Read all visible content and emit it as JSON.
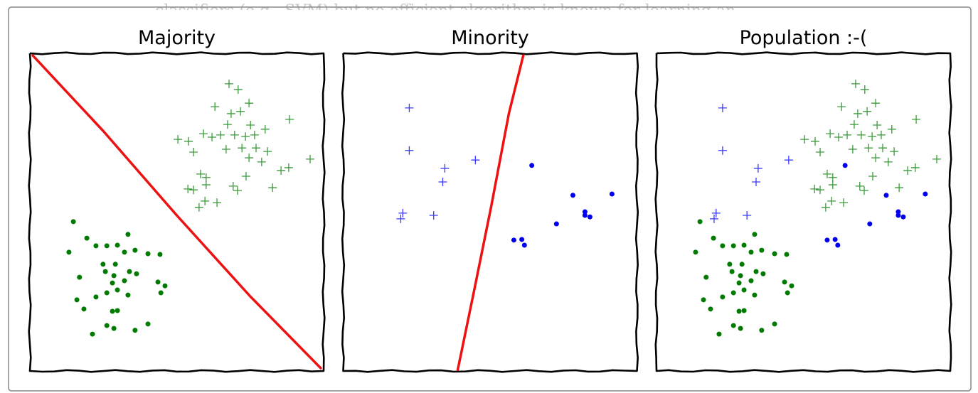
{
  "background_text": "classifiers (e.g., SVM) but no efficient algorithm is known for learning an",
  "chart_data": [
    {
      "type": "scatter",
      "title": "Majority",
      "xlim": [
        0,
        100
      ],
      "ylim": [
        0,
        100
      ],
      "series": [
        {
          "marker": "plus",
          "color": "#3c9a3c",
          "x": [
            67.8,
            70.9,
            63.0,
            74.6,
            68.5,
            71.7,
            88.4,
            67.3,
            75.1,
            80.1,
            59.1,
            62.0,
            64.9,
            69.7,
            73.4,
            76.5,
            50.4,
            54.0,
            66.8,
            72.2,
            77.0,
            80.9,
            55.7,
            74.6,
            78.9,
            95.4,
            85.5,
            88.1,
            58.1,
            60.0,
            73.6,
            53.8,
            55.7,
            60.0,
            69.2,
            70.7,
            82.6,
            59.6,
            63.7,
            57.6
          ],
          "values": [
            90.4,
            88.6,
            83.2,
            84.3,
            81.0,
            81.7,
            79.2,
            77.6,
            77.4,
            76.1,
            74.7,
            73.6,
            74.3,
            74.3,
            73.8,
            74.3,
            72.9,
            72.3,
            69.8,
            70.2,
            70.2,
            69.1,
            68.9,
            67.1,
            65.8,
            66.7,
            63.1,
            64.0,
            62.0,
            60.9,
            61.3,
            57.3,
            57.0,
            58.6,
            58.2,
            56.8,
            57.7,
            53.5,
            53.0,
            51.5
          ]
        },
        {
          "marker": "dot",
          "color": "#007a00",
          "x": [
            14.8,
            19.4,
            33.4,
            22.5,
            26.2,
            29.8,
            13.3,
            32.2,
            35.8,
            40.2,
            44.3,
            24.9,
            29.1,
            16.9,
            25.7,
            28.6,
            33.9,
            36.3,
            28.1,
            32.2,
            43.6,
            46.0,
            22.5,
            26.2,
            29.8,
            33.4,
            16.0,
            44.6,
            18.4,
            28.1,
            29.8,
            26.2,
            28.6,
            21.3,
            35.8,
            40.2
          ],
          "values": [
            47.0,
            41.8,
            43.0,
            39.4,
            39.4,
            39.6,
            37.4,
            37.4,
            38.0,
            36.9,
            36.7,
            33.6,
            33.6,
            29.5,
            31.3,
            30.0,
            31.3,
            30.6,
            27.7,
            28.4,
            28.0,
            26.8,
            23.3,
            24.6,
            25.5,
            23.9,
            22.4,
            24.6,
            19.5,
            18.8,
            19.0,
            14.3,
            13.4,
            11.6,
            12.8,
            14.8
          ]
        },
        {
          "marker": "line",
          "color": "#ee1111",
          "x": [
            1,
            25,
            50,
            75,
            99
          ],
          "values": [
            99.3,
            75.5,
            49.0,
            23.5,
            0.9
          ]
        }
      ]
    },
    {
      "type": "scatter",
      "title": "Minority",
      "xlim": [
        0,
        100
      ],
      "ylim": [
        0,
        100
      ],
      "series": [
        {
          "marker": "plus",
          "color": "#3a3aff",
          "x": [
            22.5,
            22.5,
            34.6,
            33.9,
            45.0,
            20.3,
            19.6,
            30.8
          ],
          "values": [
            82.8,
            69.4,
            63.8,
            59.5,
            66.4,
            49.7,
            47.9,
            49.0
          ]
        },
        {
          "marker": "dot",
          "color": "#0000ee",
          "x": [
            64.2,
            78.2,
            91.5,
            82.3,
            84.0,
            82.3,
            72.6,
            58.1,
            60.8,
            61.7
          ],
          "values": [
            64.7,
            55.3,
            55.7,
            50.1,
            48.5,
            49.0,
            46.3,
            41.2,
            41.4,
            39.6
          ]
        },
        {
          "marker": "line",
          "color": "#ee1111",
          "x": [
            61.3,
            56.4,
            50.4,
            44.5,
            39.0
          ],
          "values": [
            99.3,
            81.0,
            51.9,
            25.0,
            0.4
          ]
        }
      ]
    },
    {
      "type": "scatter",
      "title": "Population :-(",
      "xlim": [
        0,
        100
      ],
      "ylim": [
        0,
        100
      ],
      "series": [
        {
          "marker": "plus",
          "color": "#3c9a3c",
          "x": [
            67.8,
            70.9,
            63.0,
            74.6,
            68.5,
            71.7,
            88.4,
            67.3,
            75.1,
            80.1,
            59.1,
            62.0,
            64.9,
            69.7,
            73.4,
            76.5,
            50.4,
            54.0,
            66.8,
            72.2,
            77.0,
            80.9,
            55.7,
            74.6,
            78.9,
            95.4,
            85.5,
            88.1,
            58.1,
            60.0,
            73.6,
            53.8,
            55.7,
            60.0,
            69.2,
            70.7,
            82.6,
            59.6,
            63.7,
            57.6
          ],
          "values": [
            90.4,
            88.6,
            83.2,
            84.3,
            81.0,
            81.7,
            79.2,
            77.6,
            77.4,
            76.1,
            74.7,
            73.6,
            74.3,
            74.3,
            73.8,
            74.3,
            72.9,
            72.3,
            69.8,
            70.2,
            70.2,
            69.1,
            68.9,
            67.1,
            65.8,
            66.7,
            63.1,
            64.0,
            62.0,
            60.9,
            61.3,
            57.3,
            57.0,
            58.6,
            58.2,
            56.8,
            57.7,
            53.5,
            53.0,
            51.5
          ]
        },
        {
          "marker": "dot",
          "color": "#007a00",
          "x": [
            14.8,
            19.4,
            33.4,
            22.5,
            26.2,
            29.8,
            13.3,
            32.2,
            35.8,
            40.2,
            44.3,
            24.9,
            29.1,
            16.9,
            25.7,
            28.6,
            33.9,
            36.3,
            28.1,
            32.2,
            43.6,
            46.0,
            22.5,
            26.2,
            29.8,
            33.4,
            16.0,
            44.6,
            18.4,
            28.1,
            29.8,
            26.2,
            28.6,
            21.3,
            35.8,
            40.2
          ],
          "values": [
            47.0,
            41.8,
            43.0,
            39.4,
            39.4,
            39.6,
            37.4,
            37.4,
            38.0,
            36.9,
            36.7,
            33.6,
            33.6,
            29.5,
            31.3,
            30.0,
            31.3,
            30.6,
            27.7,
            28.4,
            28.0,
            26.8,
            23.3,
            24.6,
            25.5,
            23.9,
            22.4,
            24.6,
            19.5,
            18.8,
            19.0,
            14.3,
            13.4,
            11.6,
            12.8,
            14.8
          ]
        },
        {
          "marker": "plus",
          "color": "#3a3aff",
          "x": [
            22.5,
            22.5,
            34.6,
            33.9,
            45.0,
            20.3,
            19.6,
            30.8
          ],
          "values": [
            82.8,
            69.4,
            63.8,
            59.5,
            66.4,
            49.7,
            47.9,
            49.0
          ]
        },
        {
          "marker": "dot",
          "color": "#0000ee",
          "x": [
            64.2,
            78.2,
            91.5,
            82.3,
            84.0,
            82.3,
            72.6,
            58.1,
            60.8,
            61.7
          ],
          "values": [
            64.7,
            55.3,
            55.7,
            50.1,
            48.5,
            49.0,
            46.3,
            41.2,
            41.4,
            39.6
          ]
        }
      ]
    }
  ]
}
